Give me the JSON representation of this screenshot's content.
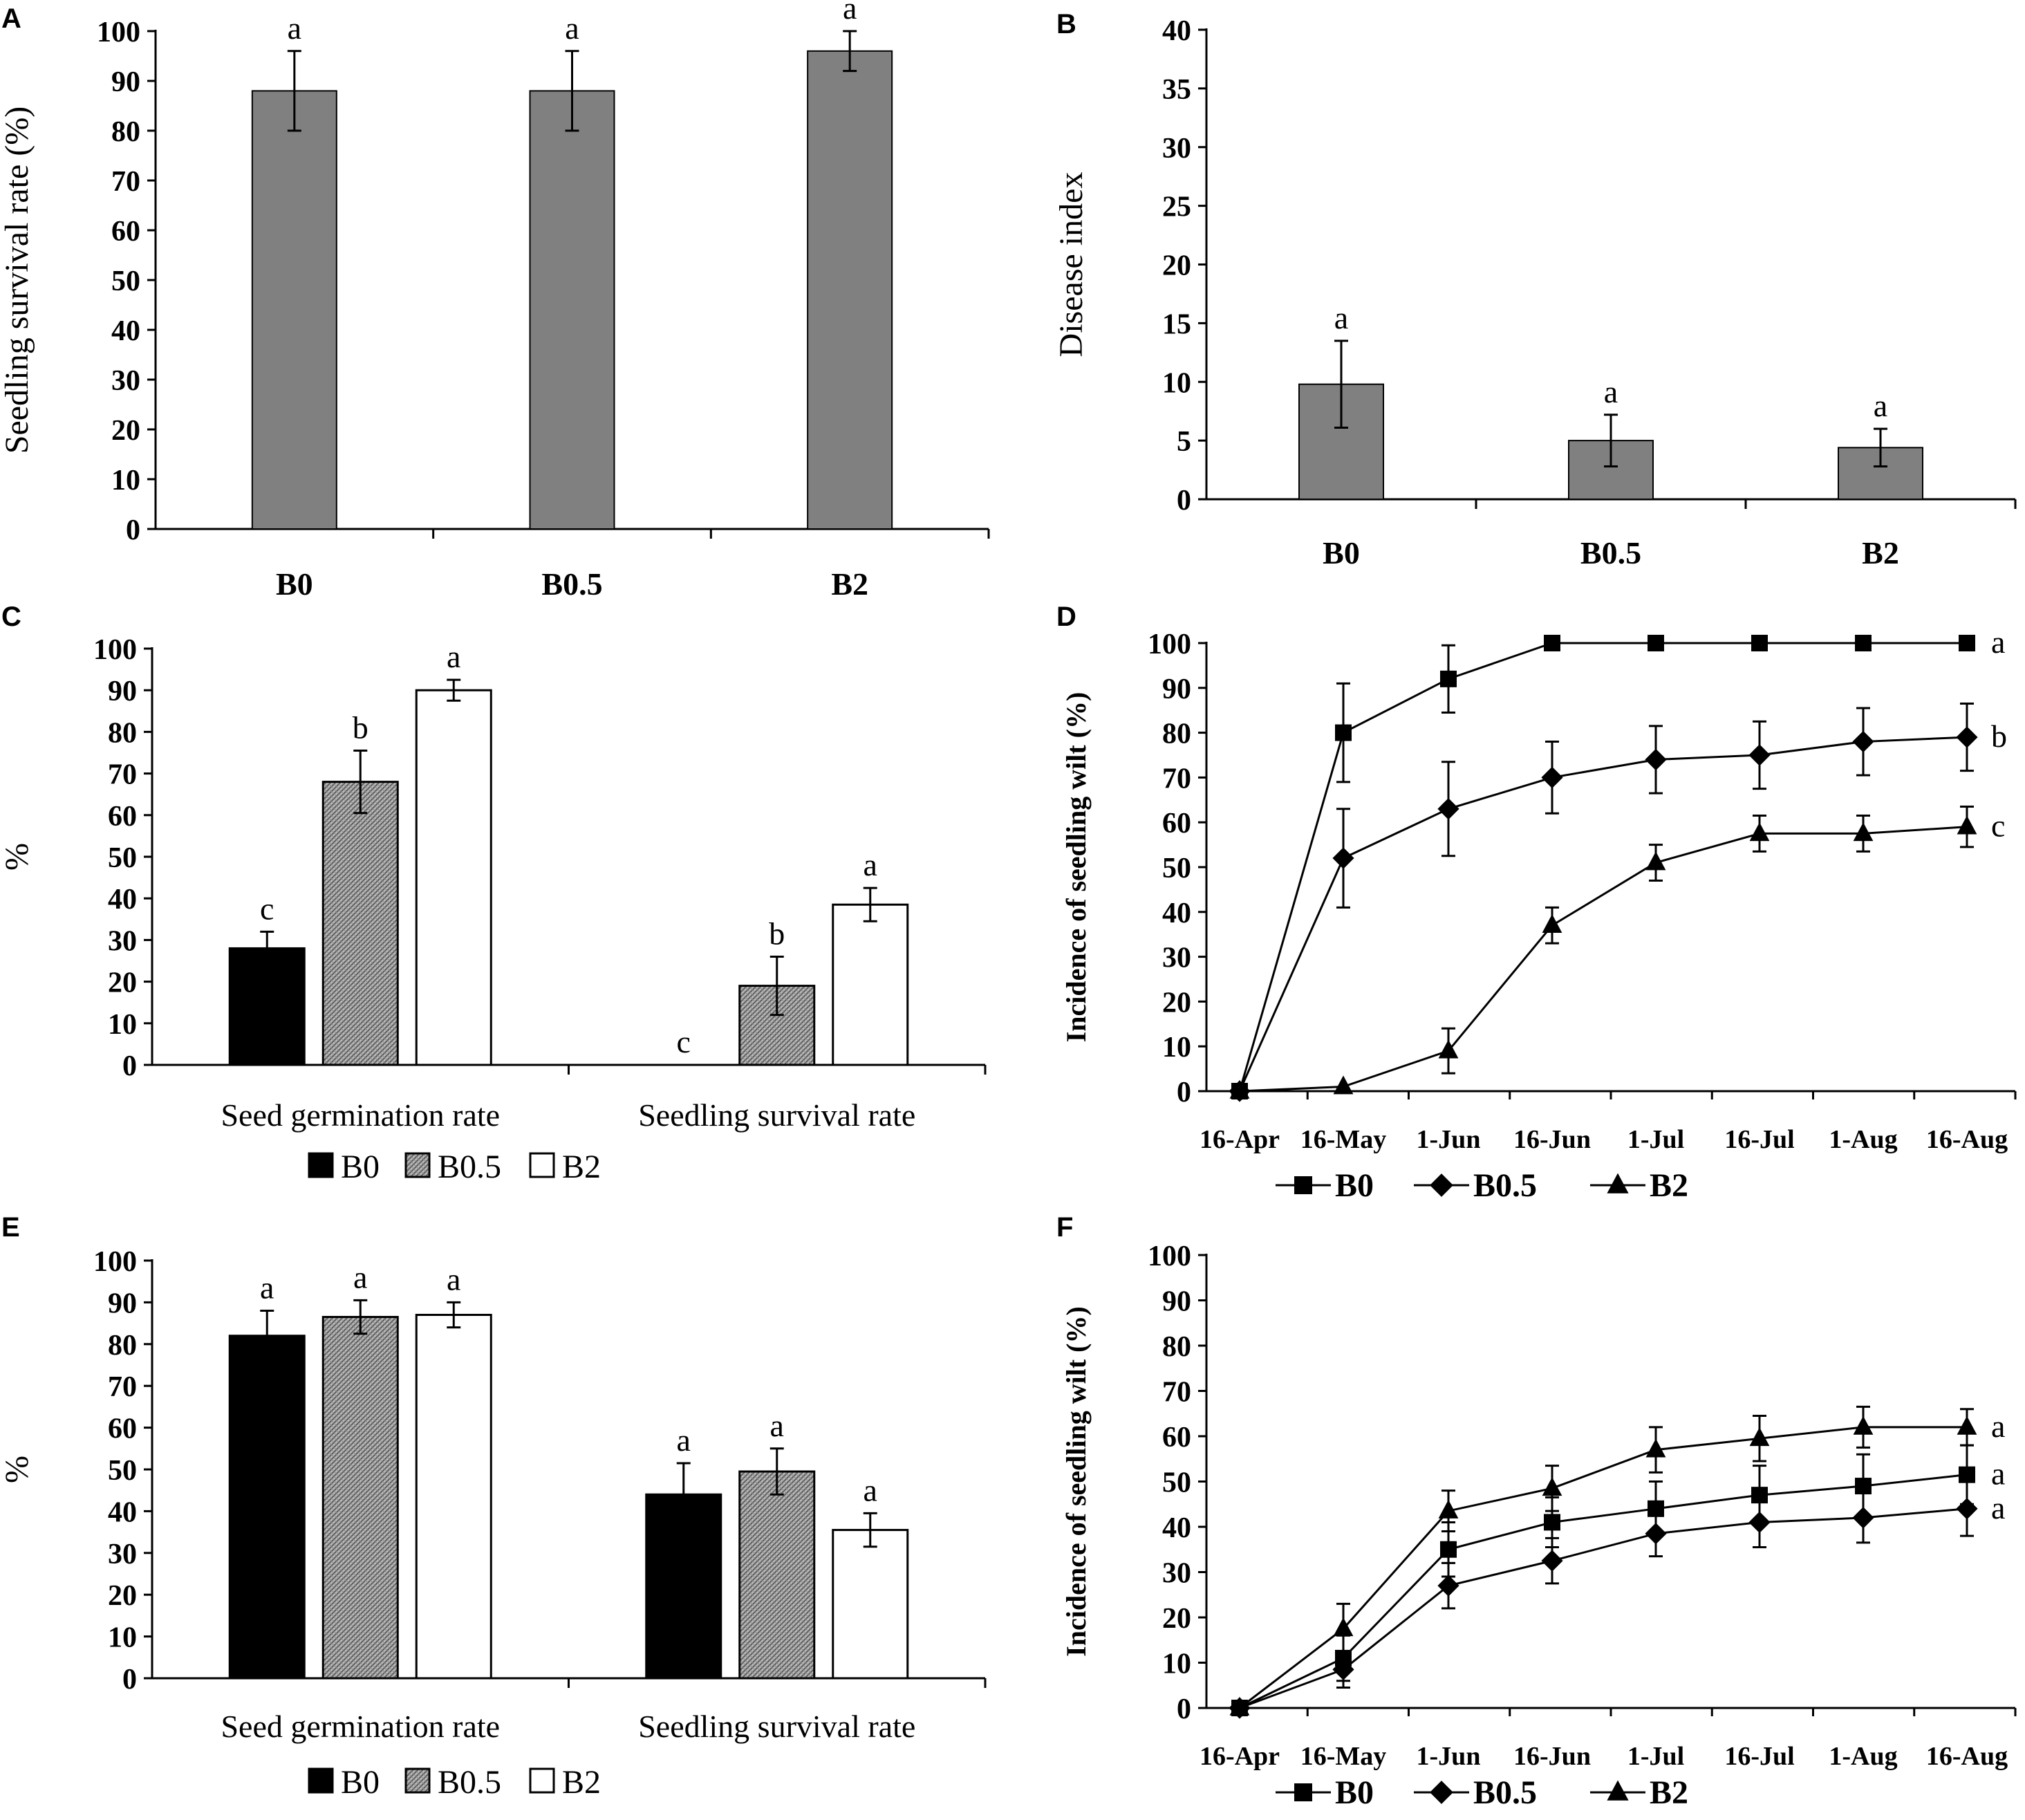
{
  "chart_data": [
    {
      "panel": "A",
      "type": "bar",
      "ylabel": "Seedling survival rate (%)",
      "ylim": [
        0,
        100
      ],
      "yticks": [
        0,
        10,
        20,
        30,
        40,
        50,
        60,
        70,
        80,
        90,
        100
      ],
      "categories": [
        "B0",
        "B0.5",
        "B2"
      ],
      "values": [
        88,
        88,
        96
      ],
      "errors": [
        8,
        8,
        4
      ],
      "letters": [
        "a",
        "a",
        "a"
      ],
      "color": "#808080"
    },
    {
      "panel": "B",
      "type": "bar",
      "ylabel": "Disease  index",
      "ylim": [
        0,
        40
      ],
      "yticks": [
        0,
        5,
        10,
        15,
        20,
        25,
        30,
        35,
        40
      ],
      "categories": [
        "B0",
        "B0.5",
        "B2"
      ],
      "values": [
        9.8,
        5.0,
        4.4
      ],
      "errors": [
        3.7,
        2.2,
        1.6
      ],
      "letters": [
        "a",
        "a",
        "a"
      ],
      "color": "#808080"
    },
    {
      "panel": "C",
      "type": "bar",
      "ylabel": "%",
      "ylim": [
        0,
        100
      ],
      "yticks": [
        0,
        10,
        20,
        30,
        40,
        50,
        60,
        70,
        80,
        90,
        100
      ],
      "categories": [
        "Seed germination rate",
        "Seedling survival rate"
      ],
      "series": [
        {
          "name": "B0",
          "values": [
            28,
            0
          ],
          "errors": [
            4,
            0
          ],
          "letters": [
            "c",
            "c"
          ]
        },
        {
          "name": "B0.5",
          "values": [
            68,
            19
          ],
          "errors": [
            7.5,
            7
          ],
          "letters": [
            "b",
            "b"
          ]
        },
        {
          "name": "B2",
          "values": [
            90,
            38.5
          ],
          "errors": [
            2.5,
            4
          ],
          "letters": [
            "a",
            "a"
          ]
        }
      ],
      "legend": [
        "B0",
        "B0.5",
        "B2"
      ]
    },
    {
      "panel": "D",
      "type": "line",
      "ylabel": "Incidence of seedling wilt (%)",
      "ylim": [
        0,
        100
      ],
      "yticks": [
        0,
        10,
        20,
        30,
        40,
        50,
        60,
        70,
        80,
        90,
        100
      ],
      "x": [
        "16-Apr",
        "16-May",
        "1-Jun",
        "16-Jun",
        "1-Jul",
        "16-Jul",
        "1-Aug",
        "16-Aug"
      ],
      "series": [
        {
          "name": "B0",
          "marker": "square",
          "values": [
            0,
            80,
            92,
            100,
            100,
            100,
            100,
            100
          ],
          "errors": [
            0,
            11,
            7.5,
            0,
            0,
            0,
            0,
            0
          ],
          "letter": "a"
        },
        {
          "name": "B0.5",
          "marker": "diamond",
          "values": [
            0,
            52,
            63,
            70,
            74,
            75,
            78,
            79
          ],
          "errors": [
            0,
            11,
            10.5,
            8,
            7.5,
            7.5,
            7.5,
            7.5
          ],
          "letter": "b"
        },
        {
          "name": "B2",
          "marker": "triangle",
          "values": [
            0,
            1,
            9,
            37,
            51,
            57.5,
            57.5,
            59
          ],
          "errors": [
            0,
            0,
            5,
            4,
            4,
            4,
            4,
            4.5
          ],
          "letter": "c"
        }
      ],
      "legend": [
        "B0",
        "B0.5",
        "B2"
      ]
    },
    {
      "panel": "E",
      "type": "bar",
      "ylabel": "%",
      "ylim": [
        0,
        100
      ],
      "yticks": [
        0,
        10,
        20,
        30,
        40,
        50,
        60,
        70,
        80,
        90,
        100
      ],
      "categories": [
        "Seed germination rate",
        "Seedling survival rate"
      ],
      "series": [
        {
          "name": "B0",
          "values": [
            82,
            44
          ],
          "errors": [
            6,
            7.5
          ],
          "letters": [
            "a",
            "a"
          ]
        },
        {
          "name": "B0.5",
          "values": [
            86.5,
            49.5
          ],
          "errors": [
            4,
            5.5
          ],
          "letters": [
            "a",
            "a"
          ]
        },
        {
          "name": "B2",
          "values": [
            87,
            35.5
          ],
          "errors": [
            3,
            4
          ],
          "letters": [
            "a",
            "a"
          ]
        }
      ],
      "legend": [
        "B0",
        "B0.5",
        "B2"
      ]
    },
    {
      "panel": "F",
      "type": "line",
      "ylabel": "Incidence of seedling wilt (%)",
      "ylim": [
        0,
        100
      ],
      "yticks": [
        0,
        10,
        20,
        30,
        40,
        50,
        60,
        70,
        80,
        90,
        100
      ],
      "x": [
        "16-Apr",
        "16-May",
        "1-Jun",
        "16-Jun",
        "1-Jul",
        "16-Jul",
        "1-Aug",
        "16-Aug"
      ],
      "series": [
        {
          "name": "B0",
          "marker": "square",
          "values": [
            0,
            11,
            35,
            41,
            44,
            47,
            49,
            51.5
          ],
          "errors": [
            0,
            5,
            6,
            5.5,
            6,
            6.5,
            7,
            6.5
          ],
          "letter": "a"
        },
        {
          "name": "B0.5",
          "marker": "diamond",
          "values": [
            0,
            8.5,
            27,
            32.5,
            38.5,
            41,
            42,
            44
          ],
          "errors": [
            0,
            4,
            5,
            5,
            5,
            5.5,
            5.5,
            6
          ],
          "letter": "a"
        },
        {
          "name": "B2",
          "marker": "triangle",
          "values": [
            0,
            17.5,
            43.5,
            48.5,
            57,
            59.5,
            62,
            62
          ],
          "errors": [
            0,
            5.5,
            4.5,
            5,
            5,
            5,
            4.5,
            4
          ],
          "letter": "a"
        }
      ],
      "legend": [
        "B0",
        "B0.5",
        "B2"
      ]
    }
  ]
}
